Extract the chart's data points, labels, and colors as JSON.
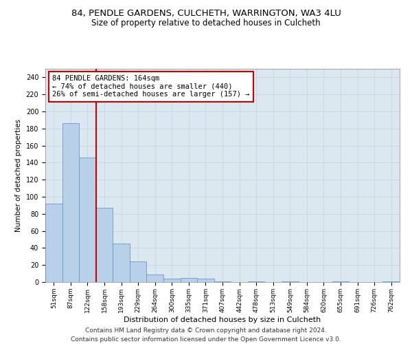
{
  "title": "84, PENDLE GARDENS, CULCHETH, WARRINGTON, WA3 4LU",
  "subtitle": "Size of property relative to detached houses in Culcheth",
  "xlabel": "Distribution of detached houses by size in Culcheth",
  "ylabel": "Number of detached properties",
  "categories": [
    "51sqm",
    "87sqm",
    "122sqm",
    "158sqm",
    "193sqm",
    "229sqm",
    "264sqm",
    "300sqm",
    "335sqm",
    "371sqm",
    "407sqm",
    "442sqm",
    "478sqm",
    "513sqm",
    "549sqm",
    "584sqm",
    "620sqm",
    "655sqm",
    "691sqm",
    "726sqm",
    "762sqm"
  ],
  "values": [
    92,
    186,
    146,
    87,
    45,
    24,
    9,
    4,
    5,
    4,
    1,
    0,
    1,
    0,
    1,
    0,
    0,
    1,
    0,
    0,
    1
  ],
  "bar_color": "#b8d0e8",
  "bar_edge_color": "#6699cc",
  "vline_x_index": 3,
  "vline_color": "#cc0000",
  "annotation_text": "84 PENDLE GARDENS: 164sqm\n← 74% of detached houses are smaller (440)\n26% of semi-detached houses are larger (157) →",
  "annotation_box_edge_color": "#cc0000",
  "annotation_fontsize": 7.5,
  "ylim": [
    0,
    250
  ],
  "yticks": [
    0,
    20,
    40,
    60,
    80,
    100,
    120,
    140,
    160,
    180,
    200,
    220,
    240
  ],
  "grid_color": "#c8d8e8",
  "background_color": "#dce8f0",
  "footer_text": "Contains HM Land Registry data © Crown copyright and database right 2024.\nContains public sector information licensed under the Open Government Licence v3.0.",
  "title_fontsize": 9.5,
  "subtitle_fontsize": 8.5,
  "xlabel_fontsize": 8,
  "ylabel_fontsize": 7.5,
  "tick_fontsize": 6.5,
  "ytick_fontsize": 7,
  "footer_fontsize": 6.5
}
